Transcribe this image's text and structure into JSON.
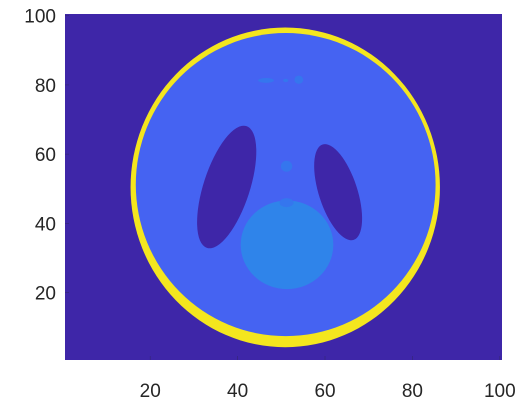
{
  "chart_data": {
    "type": "image",
    "background": "#3e26a8",
    "xlim": [
      0.5,
      100.5
    ],
    "ylim": [
      0.5,
      100.5
    ],
    "xticks": [
      20,
      40,
      60,
      80,
      100
    ],
    "yticks": [
      20,
      40,
      60,
      80,
      100
    ],
    "ellipses": [
      {
        "cx": 50.9,
        "cy": 50.4,
        "rx": 35.4,
        "ry": 46.2,
        "angle": 0,
        "color": "#f4e61e"
      },
      {
        "cx": 51.0,
        "cy": 51.2,
        "rx": 34.3,
        "ry": 43.8,
        "angle": 0,
        "color": "#4563f2"
      },
      {
        "cx": 37.5,
        "cy": 50.5,
        "rx": 5.3,
        "ry": 18.5,
        "angle": -18,
        "color": "#3e26a8"
      },
      {
        "cx": 63.0,
        "cy": 49.0,
        "rx": 4.4,
        "ry": 14.5,
        "angle": 18,
        "color": "#3e26a8"
      },
      {
        "cx": 51.3,
        "cy": 33.8,
        "rx": 10.6,
        "ry": 12.8,
        "angle": 0,
        "color": "#2f84ea"
      },
      {
        "cx": 51.2,
        "cy": 56.5,
        "rx": 1.3,
        "ry": 1.6,
        "angle": 0,
        "color": "#3576ee"
      },
      {
        "cx": 51.2,
        "cy": 46.0,
        "rx": 1.6,
        "ry": 1.3,
        "angle": 0,
        "color": "#3576ee"
      },
      {
        "cx": 46.5,
        "cy": 81.3,
        "rx": 1.8,
        "ry": 0.7,
        "angle": 0,
        "color": "#3576ee"
      },
      {
        "cx": 51.0,
        "cy": 81.3,
        "rx": 0.6,
        "ry": 0.5,
        "angle": 0,
        "color": "#3576ee"
      },
      {
        "cx": 54.0,
        "cy": 81.5,
        "rx": 1.0,
        "ry": 1.2,
        "angle": 0,
        "color": "#3576ee"
      }
    ]
  }
}
